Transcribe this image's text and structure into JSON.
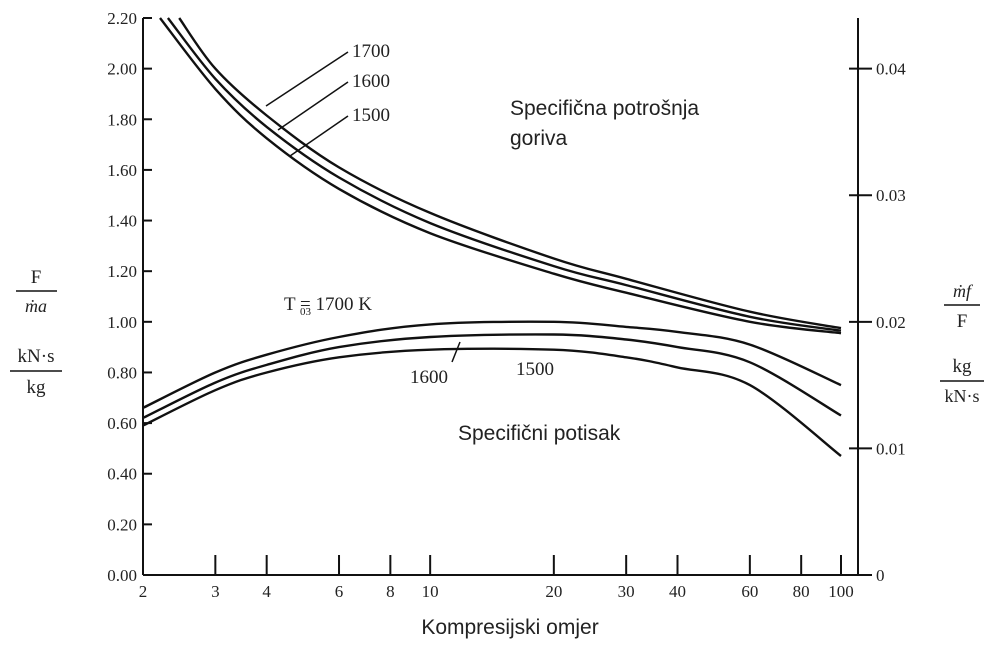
{
  "chart_data": {
    "type": "line",
    "xlabel": "Kompresijski omjer",
    "x_scale": "log",
    "xlim": [
      2,
      110
    ],
    "x_ticks": [
      2,
      3,
      4,
      6,
      8,
      10,
      20,
      30,
      40,
      60,
      80,
      100
    ],
    "x_tick_labels": [
      "2",
      "3",
      "4",
      "6",
      "8",
      "10",
      "20",
      "30",
      "40",
      "60",
      "80",
      "100"
    ],
    "ylim": [
      0,
      2.2
    ],
    "y_ticks": [
      0,
      0.2,
      0.4,
      0.6,
      0.8,
      1.0,
      1.2,
      1.4,
      1.6,
      1.8,
      2.0,
      2.2
    ],
    "y_tick_labels": [
      "0.00",
      "0.20",
      "0.40",
      "0.60",
      "0.80",
      "1.00",
      "1.20",
      "1.40",
      "1.60",
      "1.80",
      "2.00",
      "2.20"
    ],
    "y_label_top": "F",
    "y_label_top_den": "ṁa",
    "y_label_unit_num": "kN·s",
    "y_label_unit_den": "kg",
    "y2lim": [
      0,
      0.044
    ],
    "y2_ticks": [
      0,
      0.01,
      0.02,
      0.03,
      0.04
    ],
    "y2_tick_labels": [
      "0",
      "0.01",
      "0.02",
      "0.03",
      "0.04"
    ],
    "y2_label_num": "ṁf",
    "y2_label_den": "F",
    "y2_unit_num": "kg",
    "y2_unit_den": "kN·s",
    "annotations": {
      "sfc_title_line1": "Specifična potrošnja",
      "sfc_title_line2": "goriva",
      "thrust_title": "Specifični potisak",
      "sfc_1700": "1700",
      "sfc_1600": "1600",
      "sfc_1500": "1500",
      "thrust_1700": "T  = 1700 K",
      "thrust_1700_sub": "03",
      "thrust_1600": "1600",
      "thrust_1500": "1500"
    },
    "series": [
      {
        "name": "1700",
        "group": "specific_fuel_consumption",
        "axis": "right",
        "x": [
          2.45,
          3,
          4,
          6,
          10,
          20,
          30,
          60,
          100
        ],
        "y": [
          0.044,
          0.04,
          0.0363,
          0.0322,
          0.0286,
          0.025,
          0.0234,
          0.0208,
          0.0195
        ]
      },
      {
        "name": "1600",
        "group": "specific_fuel_consumption",
        "axis": "right",
        "x": [
          2.3,
          3,
          4,
          6,
          10,
          20,
          30,
          60,
          100
        ],
        "y": [
          0.044,
          0.0392,
          0.0354,
          0.0314,
          0.0278,
          0.0244,
          0.0229,
          0.0204,
          0.0193
        ]
      },
      {
        "name": "1500",
        "group": "specific_fuel_consumption",
        "axis": "right",
        "x": [
          2.2,
          3,
          4,
          6,
          10,
          20,
          30,
          60,
          100
        ],
        "y": [
          0.044,
          0.0384,
          0.0345,
          0.0305,
          0.027,
          0.0238,
          0.0223,
          0.02,
          0.0191
        ]
      },
      {
        "name": "1700",
        "group": "specific_thrust",
        "axis": "left",
        "x": [
          2,
          3,
          4,
          6,
          10,
          20,
          30,
          40,
          60,
          100
        ],
        "y": [
          0.66,
          0.8,
          0.87,
          0.94,
          0.99,
          1.0,
          0.98,
          0.96,
          0.91,
          0.75
        ]
      },
      {
        "name": "1600",
        "group": "specific_thrust",
        "axis": "left",
        "x": [
          2,
          3,
          4,
          6,
          10,
          20,
          30,
          40,
          60,
          100
        ],
        "y": [
          0.62,
          0.76,
          0.83,
          0.9,
          0.94,
          0.95,
          0.93,
          0.9,
          0.84,
          0.63
        ]
      },
      {
        "name": "1500",
        "group": "specific_thrust",
        "axis": "left",
        "x": [
          2,
          3,
          4,
          6,
          10,
          20,
          30,
          40,
          60,
          100
        ],
        "y": [
          0.59,
          0.73,
          0.8,
          0.86,
          0.89,
          0.89,
          0.86,
          0.82,
          0.75,
          0.47
        ]
      }
    ]
  }
}
